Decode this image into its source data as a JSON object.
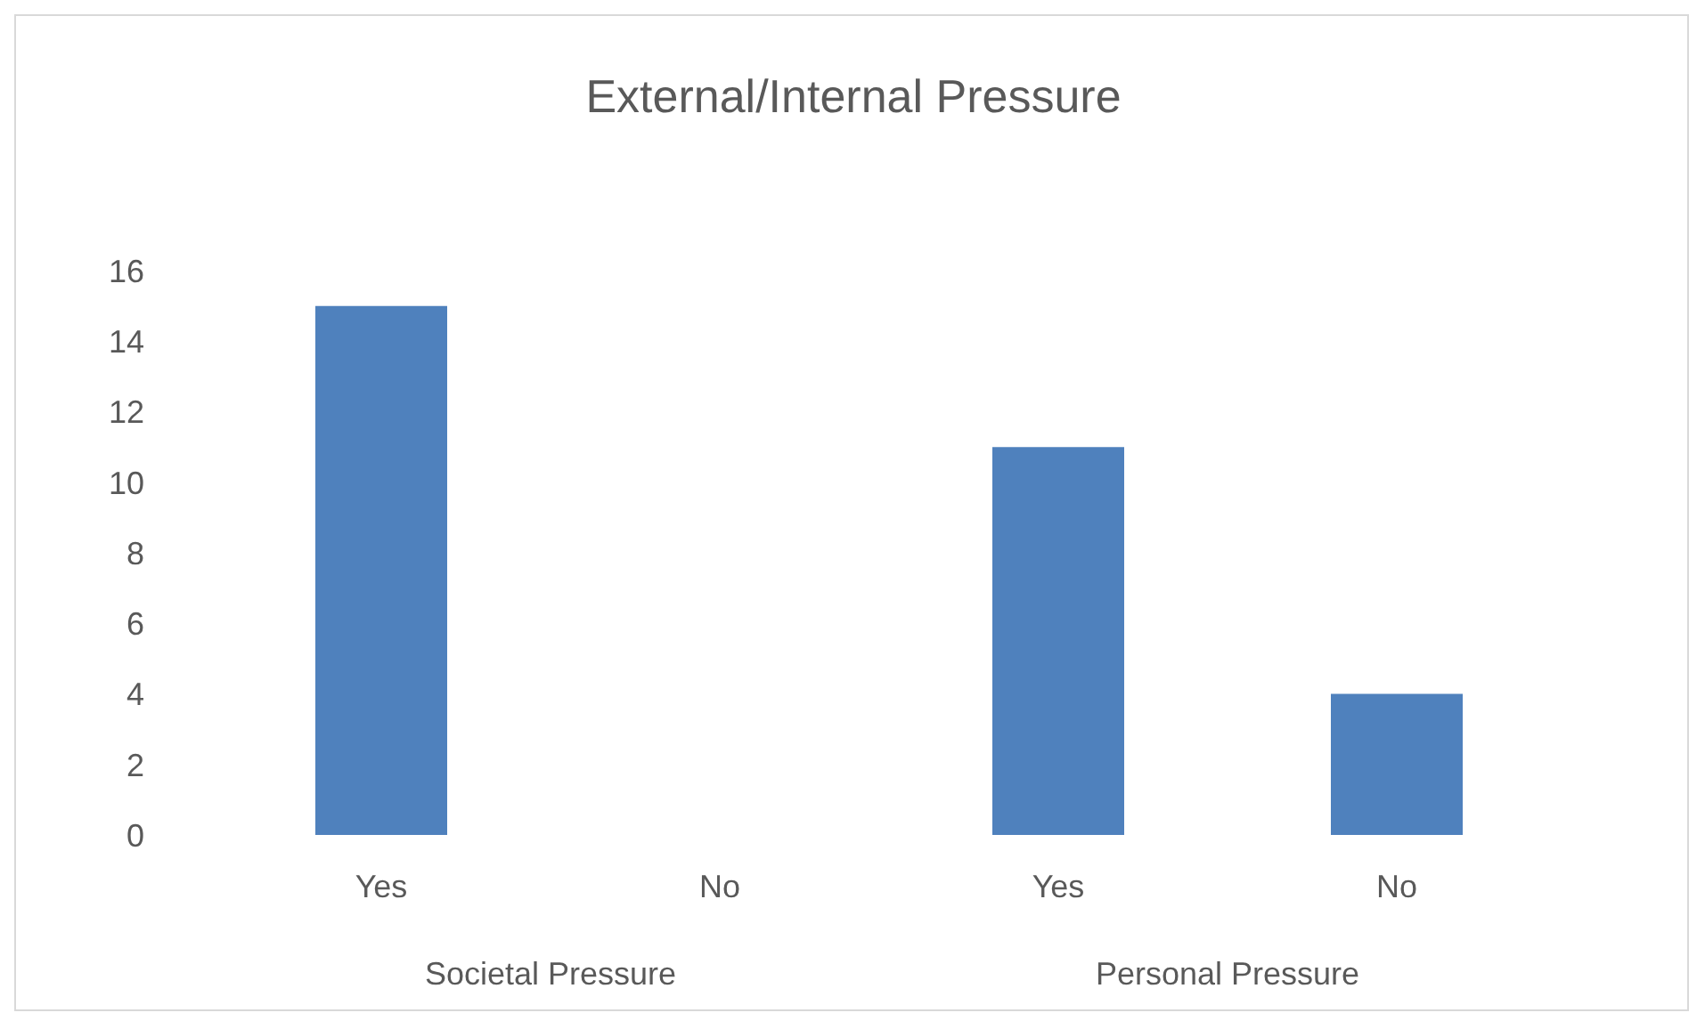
{
  "chart_data": {
    "type": "bar",
    "title": "External/Internal Pressure",
    "categories": [
      "Yes",
      "No",
      "Yes",
      "No"
    ],
    "values": [
      15,
      0,
      11,
      4
    ],
    "color": "#4f81bd",
    "annotations": [
      "Societal Pressure",
      "Personal Pressure"
    ],
    "ylim": [
      0,
      16
    ],
    "yticks": [
      0,
      2,
      4,
      6,
      8,
      10,
      12,
      14,
      16
    ],
    "grid": false,
    "legend": false
  }
}
